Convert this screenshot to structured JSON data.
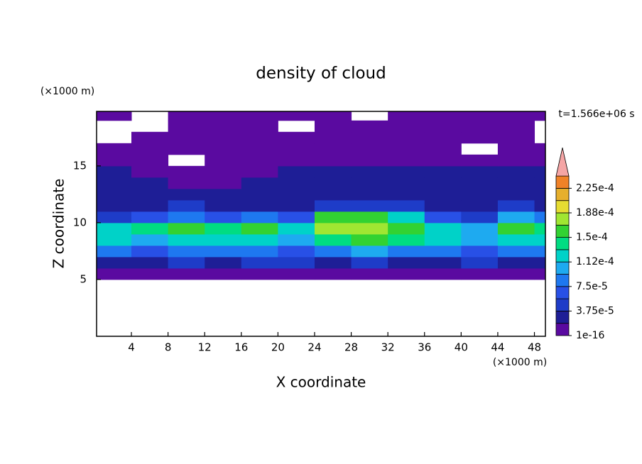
{
  "chart_data": {
    "type": "contour",
    "title": "density of cloud",
    "x_label": "X coordinate",
    "y_label": "Z coordinate",
    "x_unit": "(×1000 m)",
    "y_unit": "(×1000 m)",
    "time_label": "t=1.566e+06 s",
    "xlim": [
      0.2,
      49.2
    ],
    "ylim": [
      0,
      19.8
    ],
    "xticks": [
      4,
      8,
      12,
      16,
      20,
      24,
      28,
      32,
      36,
      40,
      44,
      48
    ],
    "yticks": [
      5,
      10,
      15
    ],
    "field": {
      "x": [
        2,
        6,
        10,
        14,
        18,
        22,
        26,
        30,
        34,
        38,
        42,
        46,
        50
      ],
      "z": [
        5.5,
        6.5,
        7.5,
        8.5,
        9.5,
        10.5,
        11.5,
        12.5,
        13.5,
        14.5,
        15.5,
        16.5,
        17.5,
        18.5,
        19.5
      ],
      "values": [
        [
          1e-05,
          1e-05,
          1e-05,
          1e-05,
          1e-05,
          1e-05,
          1e-05,
          1e-05,
          1e-05,
          1e-05,
          1e-05,
          1e-05,
          1e-05
        ],
        [
          3e-05,
          3e-05,
          4e-05,
          3e-05,
          4e-05,
          4e-05,
          3e-05,
          4e-05,
          3e-05,
          3e-05,
          4e-05,
          3e-05,
          3e-05
        ],
        [
          8e-05,
          7e-05,
          8e-05,
          9e-05,
          8e-05,
          6e-05,
          9e-05,
          0.0001,
          9e-05,
          8e-05,
          6e-05,
          8e-05,
          8e-05
        ],
        [
          0.00012,
          0.00011,
          0.00013,
          0.00012,
          0.00013,
          0.0001,
          0.000145,
          0.00015,
          0.00014,
          0.00012,
          0.0001,
          0.00013,
          0.00012
        ],
        [
          0.00013,
          0.000135,
          0.00015,
          0.00014,
          0.000155,
          0.00012,
          0.000175,
          0.00018,
          0.00016,
          0.00013,
          0.0001,
          0.00015,
          0.00014
        ],
        [
          5e-05,
          6e-05,
          9e-05,
          6e-05,
          8e-05,
          6e-05,
          0.00015,
          0.00016,
          0.00012,
          7e-05,
          5e-05,
          0.00011,
          8e-05
        ],
        [
          3e-05,
          3.5e-05,
          4e-05,
          3e-05,
          3.5e-05,
          3e-05,
          5e-05,
          5e-05,
          4e-05,
          3e-05,
          3e-05,
          4e-05,
          3e-05
        ],
        [
          2.5e-05,
          2.5e-05,
          3e-05,
          2.5e-05,
          2.5e-05,
          2.5e-05,
          3e-05,
          2.5e-05,
          2.5e-05,
          2.5e-05,
          2.5e-05,
          3e-05,
          2.5e-05
        ],
        [
          2.5e-05,
          2e-05,
          1e-05,
          1e-05,
          2e-05,
          2e-05,
          2.5e-05,
          2e-05,
          2e-05,
          2e-05,
          2e-05,
          2.5e-05,
          2e-05
        ],
        [
          2.5e-05,
          1e-05,
          1e-05,
          1e-05,
          1e-05,
          2e-05,
          2e-05,
          2e-05,
          2e-05,
          2e-05,
          2e-05,
          2e-05,
          2e-05
        ],
        [
          1e-05,
          1e-05,
          null,
          1e-05,
          1e-05,
          1e-05,
          1e-05,
          1e-05,
          1e-05,
          1e-05,
          1e-05,
          1e-05,
          1e-05
        ],
        [
          1e-05,
          1e-05,
          1e-05,
          1e-05,
          1e-05,
          1e-05,
          1e-05,
          1e-05,
          1e-05,
          1e-05,
          null,
          1e-05,
          1e-05
        ],
        [
          null,
          1e-05,
          1e-05,
          1e-05,
          1e-05,
          1e-05,
          1e-05,
          1e-05,
          1e-05,
          1e-05,
          1e-05,
          1e-05,
          null
        ],
        [
          null,
          null,
          1e-05,
          1e-05,
          1e-05,
          null,
          1e-05,
          1e-05,
          1e-05,
          1e-05,
          1e-05,
          1e-05,
          null
        ],
        [
          1e-05,
          null,
          1e-05,
          1e-05,
          1e-05,
          1e-05,
          1e-05,
          null,
          1e-05,
          1e-05,
          1e-05,
          1e-05,
          1e-05
        ]
      ]
    },
    "colorbar": {
      "levels": [
        1e-16,
        1.875e-05,
        3.75e-05,
        5.625e-05,
        7.5e-05,
        9.375e-05,
        0.0001125,
        0.00013125,
        0.00015,
        0.00016875,
        0.0001875,
        0.00020625,
        0.000225,
        0.00024375
      ],
      "colors": [
        "#5a0aa0",
        "#1e1e96",
        "#1e3cc8",
        "#2850e6",
        "#1e78f0",
        "#1eaaf0",
        "#00d2c8",
        "#00dc82",
        "#32d232",
        "#a0e632",
        "#e6dc32",
        "#e6af2d",
        "#f08228"
      ],
      "extend_color": "#f5a5a5",
      "over_color": "#fa3c3c",
      "ticks": [
        {
          "value": 1e-16,
          "label": "1e-16"
        },
        {
          "value": 3.75e-05,
          "label": "3.75e-5"
        },
        {
          "value": 7.5e-05,
          "label": "7.5e-5"
        },
        {
          "value": 0.0001125,
          "label": "1.12e-4"
        },
        {
          "value": 0.00015,
          "label": "1.5e-4"
        },
        {
          "value": 0.0001875,
          "label": "1.88e-4"
        },
        {
          "value": 0.000225,
          "label": "2.25e-4"
        }
      ]
    }
  }
}
